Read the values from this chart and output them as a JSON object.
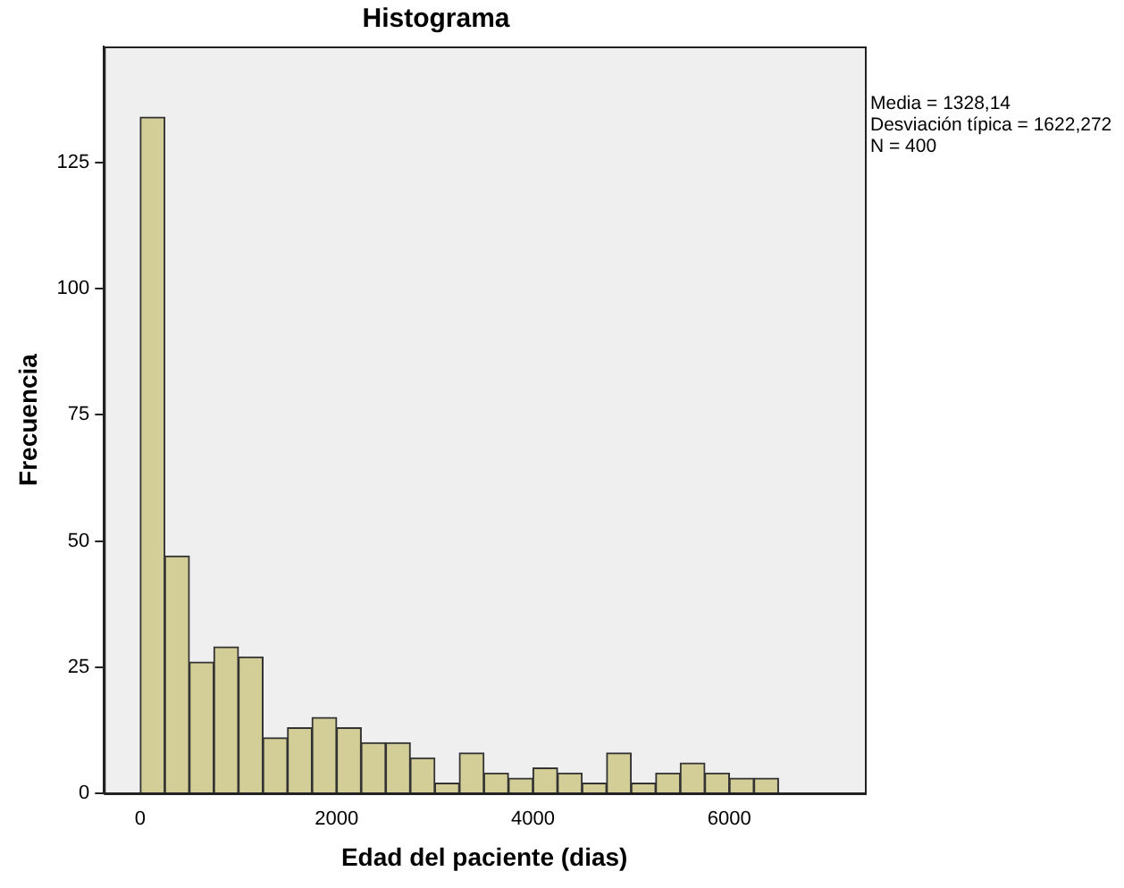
{
  "chart_data": {
    "type": "histogram",
    "title": "Histograma",
    "xlabel": "Edad del paciente (dias)",
    "ylabel": "Frecuencia",
    "bins": [
      0,
      250,
      500,
      750,
      1000,
      1250,
      1500,
      1750,
      2000,
      2250,
      2500,
      2750,
      3000,
      3250,
      3500,
      3750,
      4000,
      4250,
      4500,
      4750,
      5000,
      5250,
      5500,
      5750,
      6000,
      6250,
      6500
    ],
    "values": [
      134,
      47,
      26,
      29,
      27,
      11,
      13,
      15,
      13,
      10,
      10,
      7,
      2,
      8,
      4,
      3,
      5,
      4,
      2,
      8,
      2,
      4,
      6,
      4,
      3,
      3
    ],
    "color": "#d3ce97",
    "xlim": [
      -370,
      7380
    ],
    "xticks": [
      0,
      2000,
      4000,
      6000
    ],
    "ylim": [
      0,
      148
    ],
    "yticks": [
      0,
      25,
      50,
      75,
      100,
      125
    ],
    "grid": false,
    "legend": false,
    "annotations": [
      "Media = 1328,14",
      "Desviación típica = 1622,272",
      "N = 400"
    ]
  }
}
